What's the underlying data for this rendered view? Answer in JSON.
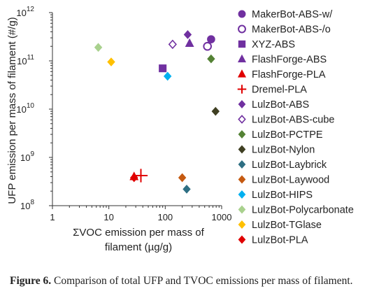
{
  "caption": {
    "label": "Figure 6.",
    "text": "Comparison of total UFP and TVOC emissions per mass of filament."
  },
  "chart_data": {
    "type": "scatter",
    "title": "",
    "xlabel": [
      "ΣVOC emission per mass of",
      "filament (µg/g)"
    ],
    "ylabel": "UFP emission per mass of filament (#/g)",
    "xscale": "log",
    "yscale": "log",
    "xlim": [
      1,
      1000
    ],
    "ylim": [
      100000000,
      1000000000000
    ],
    "x_ticks": [
      {
        "value": 1,
        "label": "1"
      },
      {
        "value": 10,
        "label": "10"
      },
      {
        "value": 100,
        "label": "100"
      },
      {
        "value": 1000,
        "label": "1000"
      }
    ],
    "y_ticks": [
      {
        "value": 100000000,
        "base": "10",
        "exp": "8"
      },
      {
        "value": 1000000000,
        "base": "10",
        "exp": "9"
      },
      {
        "value": 10000000000,
        "base": "10",
        "exp": "10"
      },
      {
        "value": 100000000000,
        "base": "10",
        "exp": "11"
      },
      {
        "value": 1000000000000,
        "base": "10",
        "exp": "12"
      }
    ],
    "grid": false,
    "legend_position": "right",
    "series": [
      {
        "name": "MakerBot-ABS-w/",
        "marker": "circle",
        "color": "#7030a0",
        "filled": true,
        "points": [
          [
            650,
            280000000000
          ]
        ]
      },
      {
        "name": "MakerBot-ABS-/o",
        "marker": "circle",
        "color": "#7030a0",
        "filled": false,
        "points": [
          [
            560,
            200000000000
          ]
        ]
      },
      {
        "name": "XYZ-ABS",
        "marker": "square",
        "color": "#7030a0",
        "filled": true,
        "points": [
          [
            90,
            70000000000
          ]
        ]
      },
      {
        "name": "FlashForge-ABS",
        "marker": "triangle",
        "color": "#7030a0",
        "filled": true,
        "points": [
          [
            270,
            230000000000
          ]
        ]
      },
      {
        "name": "FlashForge-PLA",
        "marker": "triangle",
        "color": "#e00000",
        "filled": true,
        "points": [
          [
            28,
            400000000
          ]
        ]
      },
      {
        "name": "Dremel-PLA",
        "marker": "plus",
        "color": "#e00000",
        "filled": true,
        "points": [
          [
            37,
            420000000
          ]
        ]
      },
      {
        "name": "LulzBot-ABS",
        "marker": "diamond",
        "color": "#7030a0",
        "filled": true,
        "points": [
          [
            250,
            350000000000
          ]
        ]
      },
      {
        "name": "LulzBot-ABS-cube",
        "marker": "diamond",
        "color": "#7030a0",
        "filled": false,
        "points": [
          [
            135,
            220000000000
          ]
        ]
      },
      {
        "name": "LulzBot-PCTPE",
        "marker": "diamond",
        "color": "#548235",
        "filled": true,
        "points": [
          [
            650,
            110000000000
          ]
        ]
      },
      {
        "name": "LulzBot-Nylon",
        "marker": "diamond",
        "color": "#3f3f22",
        "filled": true,
        "points": [
          [
            780,
            9000000000
          ]
        ]
      },
      {
        "name": "LulzBot-Laybrick",
        "marker": "diamond",
        "color": "#2e6f83",
        "filled": true,
        "points": [
          [
            240,
            220000000
          ]
        ]
      },
      {
        "name": "LulzBot-Laywood",
        "marker": "diamond",
        "color": "#c55a11",
        "filled": true,
        "points": [
          [
            200,
            380000000
          ]
        ]
      },
      {
        "name": "LulzBot-HIPS",
        "marker": "diamond",
        "color": "#00b0f0",
        "filled": true,
        "points": [
          [
            110,
            48000000000
          ]
        ]
      },
      {
        "name": "LulzBot-Polycarbonate",
        "marker": "diamond",
        "color": "#a9d18e",
        "filled": true,
        "points": [
          [
            6.5,
            190000000000
          ]
        ]
      },
      {
        "name": "LulzBot-TGlase",
        "marker": "diamond",
        "color": "#ffc000",
        "filled": true,
        "points": [
          [
            11,
            95000000000
          ]
        ]
      },
      {
        "name": "LulzBot-PLA",
        "marker": "diamond",
        "color": "#e00000",
        "filled": true,
        "points": [
          [
            28,
            380000000
          ]
        ]
      }
    ]
  }
}
